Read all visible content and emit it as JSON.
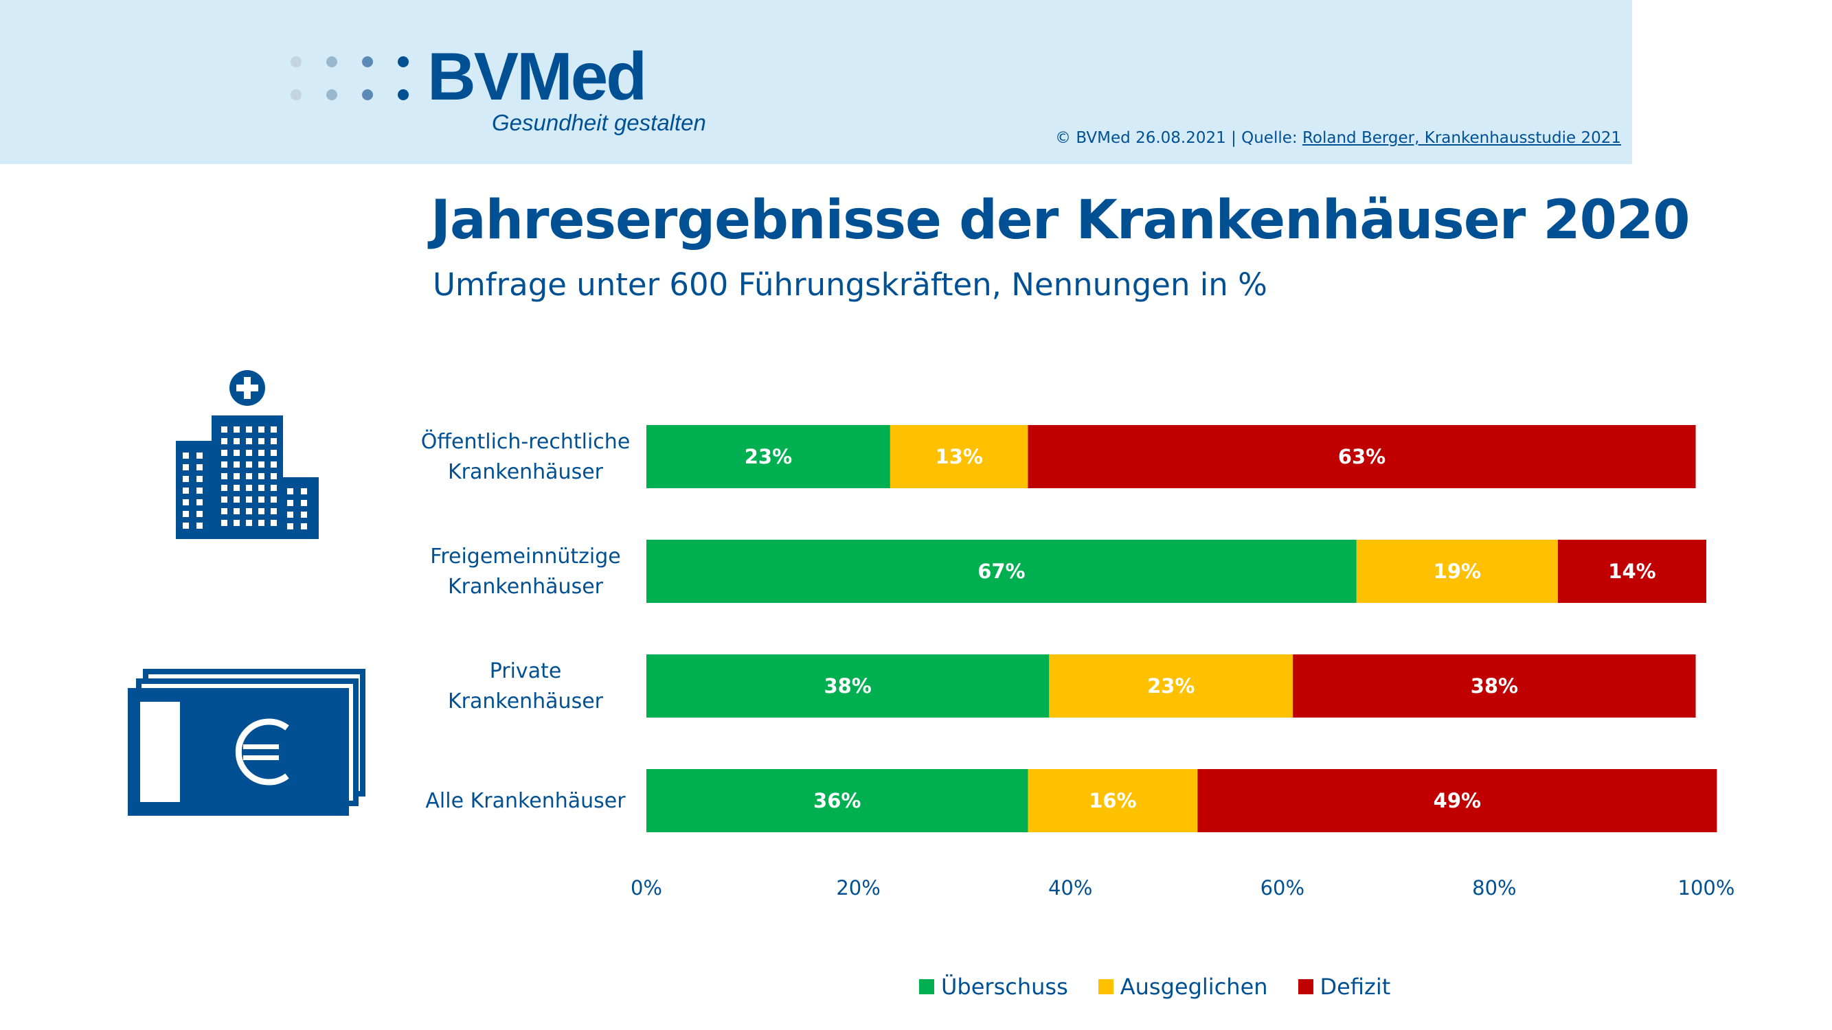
{
  "header": {
    "brand": "BVMed",
    "tagline": "Gesundheit gestalten",
    "source_prefix": "© BVMed 26.08.2021 | Quelle: ",
    "source_link": "Roland Berger, Krankenhausstudie 2021"
  },
  "colors": {
    "header_bg": "#d6ebf8",
    "brand_blue": "#005093",
    "ueberschuss": "#00b050",
    "ausgeglichen": "#ffc000",
    "defizit": "#c00000"
  },
  "icons": {
    "top": "hospital-building-icon",
    "bottom": "euro-banknotes-icon"
  },
  "chart_data": {
    "type": "bar",
    "orientation": "horizontal",
    "stacked": true,
    "title": "Jahresergebnisse der Krankenhäuser 2020",
    "subtitle": "Umfrage unter 600 Führungskräften, Nennungen in %",
    "categories": [
      [
        "Öffentlich-rechtliche",
        "Krankenhäuser"
      ],
      [
        "Freigemeinnützige",
        "Krankenhäuser"
      ],
      [
        "Private",
        "Krankenhäuser"
      ],
      [
        "Alle Krankenhäuser"
      ]
    ],
    "series": [
      {
        "name": "Überschuss",
        "color": "#00b050",
        "values": [
          23,
          67,
          38,
          36
        ],
        "labels": [
          "23%",
          "67%",
          "38%",
          "36%"
        ]
      },
      {
        "name": "Ausgeglichen",
        "color": "#ffc000",
        "values": [
          13,
          19,
          23,
          16
        ],
        "labels": [
          "13%",
          "19%",
          "23%",
          "16%"
        ]
      },
      {
        "name": "Defizit",
        "color": "#c00000",
        "values": [
          63,
          14,
          38,
          49
        ],
        "labels": [
          "63%",
          "14%",
          "38%",
          "49%"
        ]
      }
    ],
    "xlim": [
      0,
      100
    ],
    "xticks": [
      0,
      20,
      40,
      60,
      80,
      100
    ],
    "xtick_labels": [
      "0%",
      "20%",
      "40%",
      "60%",
      "80%",
      "100%"
    ],
    "grid": false,
    "legend_position": "bottom"
  }
}
